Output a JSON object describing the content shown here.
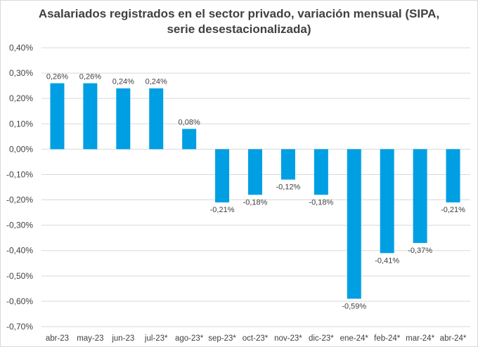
{
  "chart_data": {
    "type": "bar",
    "title_lines": [
      "Asalariados registrados en el sector privado, variación mensual (SIPA,",
      "serie desestacionalizada)"
    ],
    "categories": [
      "abr-23",
      "may-23",
      "jun-23",
      "jul-23*",
      "ago-23*",
      "sep-23*",
      "oct-23*",
      "nov-23*",
      "dic-23*",
      "ene-24*",
      "feb-24*",
      "mar-24*",
      "abr-24*"
    ],
    "values": [
      0.26,
      0.26,
      0.24,
      0.24,
      0.08,
      -0.21,
      -0.18,
      -0.12,
      -0.18,
      -0.59,
      -0.41,
      -0.37,
      -0.21
    ],
    "data_labels": [
      "0,26%",
      "0,26%",
      "0,24%",
      "0,24%",
      "0,08%",
      "-0,21%",
      "-0,18%",
      "-0,12%",
      "-0,18%",
      "-0,59%",
      "-0,41%",
      "-0,37%",
      "-0,21%"
    ],
    "ylim": [
      -0.7,
      0.4
    ],
    "yticks": [
      0.4,
      0.3,
      0.2,
      0.1,
      0.0,
      -0.1,
      -0.2,
      -0.3,
      -0.4,
      -0.5,
      -0.6,
      -0.7
    ],
    "ytick_labels": [
      "0,40%",
      "0,30%",
      "0,20%",
      "0,10%",
      "0,00%",
      "-0,10%",
      "-0,20%",
      "-0,30%",
      "-0,40%",
      "-0,50%",
      "-0,60%",
      "-0,70%"
    ],
    "grid": true,
    "bar_color": "#009fe3"
  }
}
